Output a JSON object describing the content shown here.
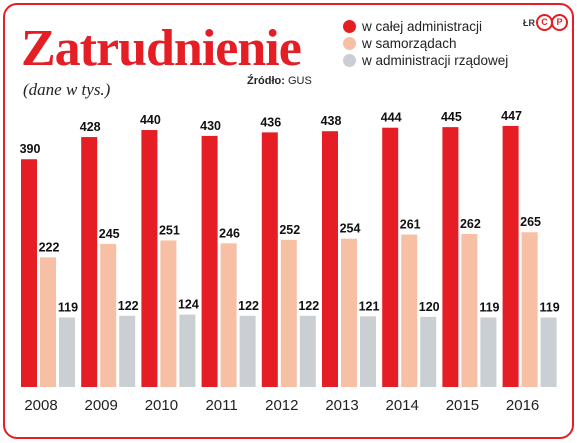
{
  "title": "Zatrudnienie",
  "subtitle": "(dane w tys.)",
  "source": {
    "label": "Źródło:",
    "value": "GUS"
  },
  "logo": {
    "prefix": "ŁR",
    "letters": [
      "C",
      "P"
    ]
  },
  "legend": [
    {
      "label": "w całej administracji",
      "color": "#e51e25"
    },
    {
      "label": "w samorządach",
      "color": "#f7bfa4"
    },
    {
      "label": "w administracji rządowej",
      "color": "#c9cfd3"
    }
  ],
  "chart_data": {
    "type": "bar",
    "categories": [
      "2008",
      "2009",
      "2010",
      "2011",
      "2012",
      "2013",
      "2014",
      "2015",
      "2016"
    ],
    "series": [
      {
        "name": "w całej administracji",
        "color": "#e51e25",
        "values": [
          390,
          428,
          440,
          430,
          436,
          438,
          444,
          445,
          447
        ]
      },
      {
        "name": "w samorządach",
        "color": "#f7bfa4",
        "values": [
          222,
          245,
          251,
          246,
          252,
          254,
          261,
          262,
          265
        ]
      },
      {
        "name": "w administracji rządowej",
        "color": "#c9cfd3",
        "values": [
          119,
          122,
          124,
          122,
          122,
          121,
          120,
          119,
          119
        ]
      }
    ],
    "title": "Zatrudnienie",
    "subtitle": "(dane w tys.)",
    "ylim": [
      0,
      480
    ],
    "grid": false,
    "legend_position": "top-right",
    "data_labels": true
  }
}
